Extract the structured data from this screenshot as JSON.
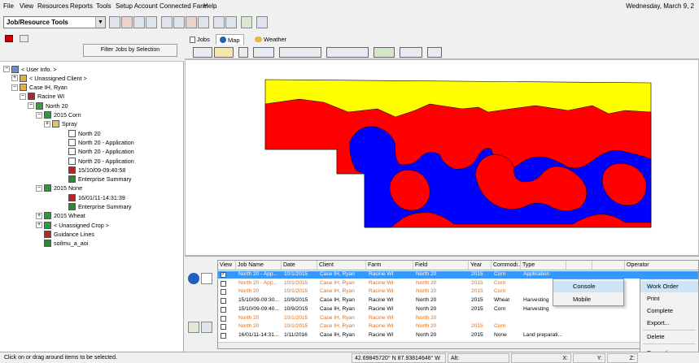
{
  "menubar": {
    "items": [
      "File",
      "View",
      "Resources",
      "Reports",
      "Tools",
      "Setup Account",
      "Connected Farm",
      "Help"
    ],
    "date": "Wednesday, March 9, 2"
  },
  "toolbar": {
    "combo_value": "Job/Resource Tools",
    "combo_arrow": "▼"
  },
  "left_panel": {
    "filter_button": "Filter Jobs by Selection",
    "tree": [
      {
        "label": "< User Info. >",
        "exp": "−"
      },
      {
        "label": "< Unassigned Client >",
        "exp": "+"
      },
      {
        "label": "Case IH, Ryan",
        "exp": "−"
      },
      {
        "label": "Racine WI",
        "exp": "−"
      },
      {
        "label": "North 20",
        "exp": "−"
      },
      {
        "label": "2015 Corn",
        "exp": "−"
      },
      {
        "label": "Spray",
        "exp": "+"
      },
      {
        "label": "North 20",
        "exp": ""
      },
      {
        "label": "North 20 - Application",
        "exp": ""
      },
      {
        "label": "North 20 - Application",
        "exp": ""
      },
      {
        "label": "North 20 - Application",
        "exp": ""
      },
      {
        "label": "15/10/09-09:40:58",
        "exp": ""
      },
      {
        "label": "Enterprise Summary",
        "exp": ""
      },
      {
        "label": "2015 None",
        "exp": "−"
      },
      {
        "label": "16/01/11-14:31:39",
        "exp": ""
      },
      {
        "label": "Enterprise Summary",
        "exp": ""
      },
      {
        "label": "2015 Wheat",
        "exp": "+"
      },
      {
        "label": "< Unassigned Crop >",
        "exp": "+"
      },
      {
        "label": "Guidance Lines",
        "exp": ""
      },
      {
        "label": "soilmu_a_aoi",
        "exp": ""
      }
    ]
  },
  "tabs": [
    "Jobs",
    "Map",
    "Weather"
  ],
  "grid": {
    "columns": [
      "View",
      "Job Name",
      "Date",
      "Client",
      "Farm",
      "Field",
      "Year",
      "Commodi...",
      "Type",
      "",
      "",
      "Operator"
    ],
    "rows": [
      {
        "name": "North 20 - App...",
        "date": "10/1/2015",
        "client": "Case IH, Ryan",
        "farm": "Racine WI",
        "field": "North 20",
        "year": "2015",
        "commodity": "Corn",
        "type": "Application",
        "checked": true,
        "selected": true,
        "orange": false
      },
      {
        "name": "North 20 - App...",
        "date": "10/1/2015",
        "client": "Case IH, Ryan",
        "farm": "Racine WI",
        "field": "North 20",
        "year": "2015",
        "commodity": "Corn",
        "type": "",
        "checked": false,
        "selected": false,
        "orange": true
      },
      {
        "name": "North 20",
        "date": "10/1/2015",
        "client": "Case IH, Ryan",
        "farm": "Racine WI",
        "field": "North 20",
        "year": "2015",
        "commodity": "Corn",
        "type": "",
        "checked": false,
        "selected": false,
        "orange": true
      },
      {
        "name": "15/10/09-09:30...",
        "date": "10/9/2015",
        "client": "Case IH, Ryan",
        "farm": "Racine WI",
        "field": "North 20",
        "year": "2015",
        "commodity": "Wheat",
        "type": "Harvesting",
        "checked": false,
        "selected": false,
        "orange": false
      },
      {
        "name": "15/10/09-09:40...",
        "date": "10/9/2015",
        "client": "Case IH, Ryan",
        "farm": "Racine WI",
        "field": "North 20",
        "year": "2015",
        "commodity": "Corn",
        "type": "Harvesting",
        "checked": false,
        "selected": false,
        "orange": false
      },
      {
        "name": "North 20",
        "date": "10/1/2015",
        "client": "Case IH, Ryan",
        "farm": "Racine WI",
        "field": "North 20",
        "year": "",
        "commodity": "",
        "type": "",
        "checked": false,
        "selected": false,
        "orange": true
      },
      {
        "name": "North 20",
        "date": "10/1/2015",
        "client": "Case IH, Ryan",
        "farm": "Racine WI",
        "field": "North 20",
        "year": "2015",
        "commodity": "Corn",
        "type": "",
        "checked": false,
        "selected": false,
        "orange": true
      },
      {
        "name": "16/01/11-14:31...",
        "date": "1/11/2016",
        "client": "Case IH, Ryan",
        "farm": "Racine WI",
        "field": "North 20",
        "year": "2015",
        "commodity": "None",
        "type": "Land preparati...",
        "checked": false,
        "selected": false,
        "orange": false
      }
    ]
  },
  "context_menu_sub": {
    "items": [
      "Console",
      "Mobile"
    ]
  },
  "context_menu_main": {
    "items": [
      "Work Order",
      "Print",
      "Complete",
      "Export...",
      "Delete",
      "Properties"
    ]
  },
  "statusbar": {
    "hint": "Click on or drag around items to be selected.",
    "coords": "42.69845720° N  87.93814646° W",
    "alt": "Alt:",
    "x": "X:",
    "y": "Y:",
    "z": "Z:"
  },
  "map_colors": {
    "yellow": "#ffff00",
    "red": "#ff0000",
    "blue": "#0000ff"
  }
}
